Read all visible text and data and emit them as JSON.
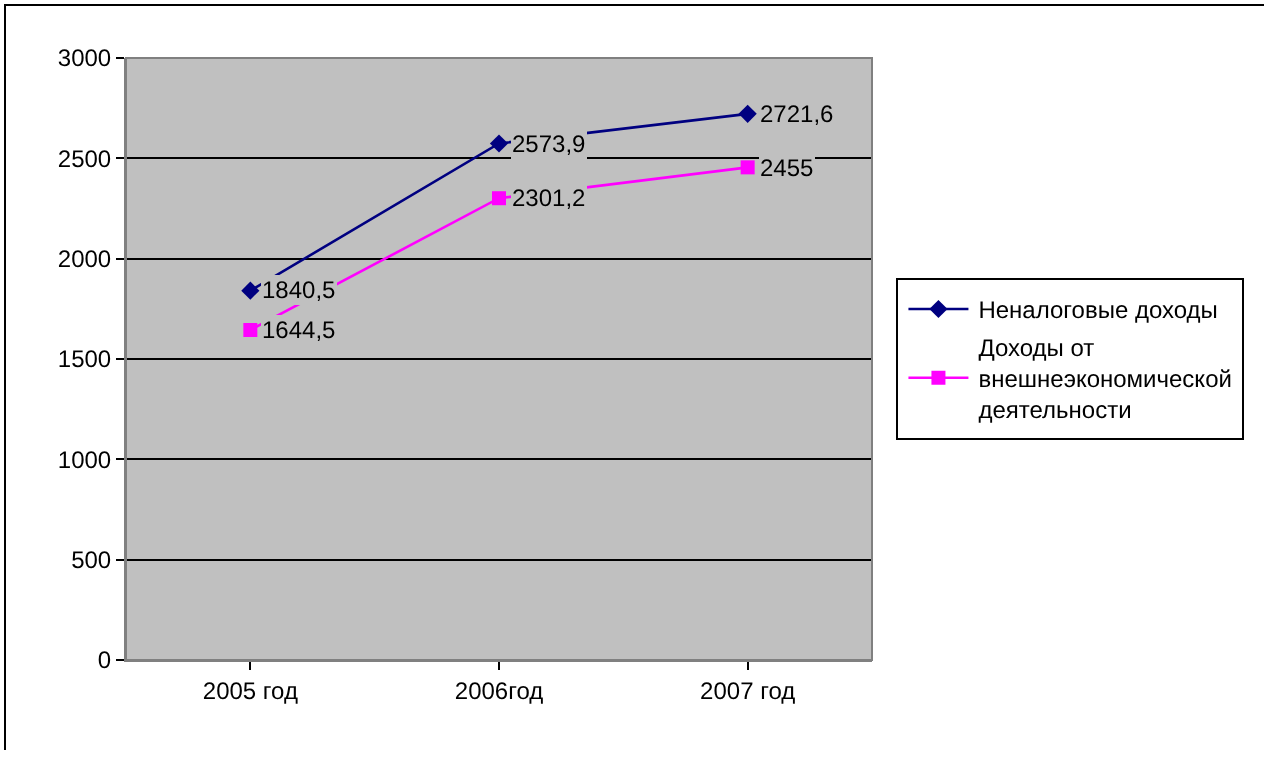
{
  "chart_data": {
    "type": "line",
    "categories": [
      "2005 год",
      "2006год",
      "2007 год"
    ],
    "series": [
      {
        "name": "Неналоговые доходы",
        "color": "#000080",
        "marker": "diamond",
        "values": [
          1840.5,
          2573.9,
          2721.6
        ],
        "value_labels": [
          "1840,5",
          "2573,9",
          "2721,6"
        ]
      },
      {
        "name": "Доходы от внешнеэкономической деятельности",
        "color": "#ff00ff",
        "marker": "square",
        "values": [
          1644.5,
          2301.2,
          2455
        ],
        "value_labels": [
          "1644,5",
          "2301,2",
          "2455"
        ]
      }
    ],
    "ylim": [
      0,
      3000
    ],
    "yticks": [
      0,
      500,
      1000,
      1500,
      2000,
      2500,
      3000
    ],
    "grid": "y",
    "legend": "right",
    "line_style": "solid"
  }
}
